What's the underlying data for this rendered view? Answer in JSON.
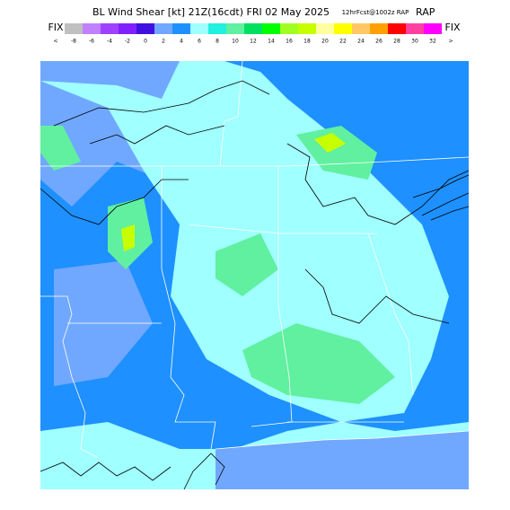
{
  "header": {
    "title": "BL Wind Shear [kt] 21Z(16cdt) FRI 02 May 2025",
    "subtitle": "12hrFcst@1002z RAP",
    "fix_left": "FIX",
    "fix_right": "FIX"
  },
  "colorbar": {
    "colors": [
      "#c0c0c0",
      "#c080ff",
      "#a040ff",
      "#8020ff",
      "#4010e0",
      "#70a8ff",
      "#1e90ff",
      "#a0ffff",
      "#20f0e0",
      "#60f0a0",
      "#00e060",
      "#00ff00",
      "#a0ff20",
      "#c8ff00",
      "#ffffa0",
      "#ffff00",
      "#ffc864",
      "#ffa000",
      "#ff0000",
      "#ff40a0",
      "#ff00ff"
    ],
    "labels": [
      "<",
      "-8",
      "-6",
      "-4",
      "-2",
      "0",
      "2",
      "4",
      "6",
      "8",
      "10",
      "12",
      "14",
      "16",
      "18",
      "20",
      "22",
      "24",
      "26",
      "28",
      "30",
      "32",
      ">"
    ]
  }
}
